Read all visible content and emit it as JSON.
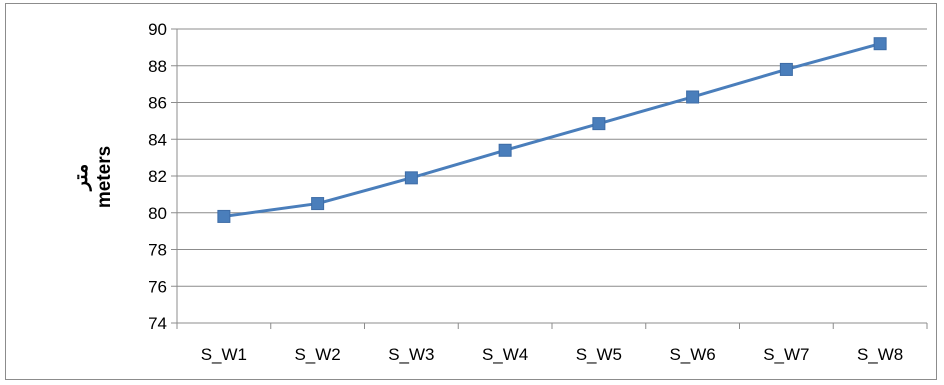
{
  "chart_data": {
    "type": "line",
    "title": "",
    "xlabel": "",
    "ylabel": "meters",
    "ylabel_secondary": "متر",
    "categories": [
      "S_W1",
      "S_W2",
      "S_W3",
      "S_W4",
      "S_W5",
      "S_W6",
      "S_W7",
      "S_W8"
    ],
    "series": [
      {
        "values": [
          79.8,
          80.5,
          81.9,
          83.4,
          84.85,
          86.3,
          87.8,
          89.2
        ],
        "color": "#4a7ebb",
        "marker": "square"
      }
    ],
    "ylim": [
      74,
      90
    ],
    "yticks": [
      74,
      76,
      78,
      80,
      82,
      84,
      86,
      88,
      90
    ],
    "grid": true,
    "legend": "none"
  }
}
